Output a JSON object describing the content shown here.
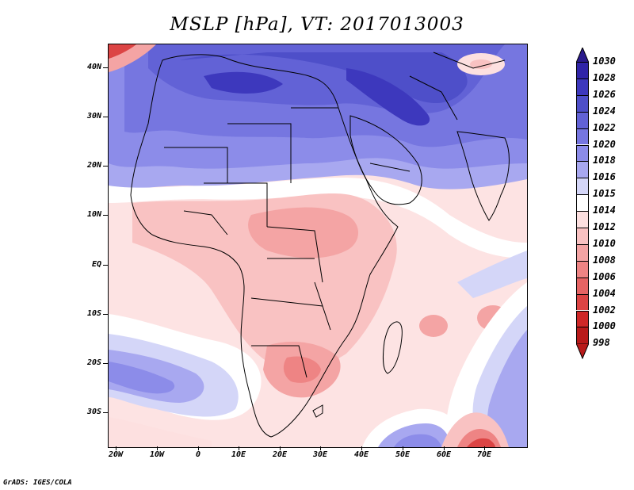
{
  "title": "MSLP [hPa], VT: 2017013003",
  "footer": "GrADS: IGES/COLA",
  "latitude_labels": [
    "40N",
    "30N",
    "20N",
    "10N",
    "EQ",
    "10S",
    "20S",
    "30S"
  ],
  "longitude_labels": [
    "20W",
    "10W",
    "0",
    "10E",
    "20E",
    "30E",
    "40E",
    "50E",
    "60E",
    "70E"
  ],
  "colorbar": {
    "levels": [
      "1030",
      "1028",
      "1026",
      "1024",
      "1022",
      "1020",
      "1018",
      "1016",
      "1015",
      "1014",
      "1012",
      "1010",
      "1008",
      "1006",
      "1004",
      "1002",
      "1000",
      "998"
    ],
    "colors": [
      "#2a1a8c",
      "#3024a8",
      "#3d38bd",
      "#4e4fc9",
      "#6262d6",
      "#7676e0",
      "#8c8ce9",
      "#a8a8f0",
      "#d4d6f8",
      "#ffffff",
      "#fde0e0",
      "#f9c2c2",
      "#f4a4a4",
      "#ee8484",
      "#e66464",
      "#dc4444",
      "#cf2828",
      "#b81a1a"
    ],
    "top_arrow_color": "#2a1a8c",
    "bottom_arrow_color": "#b81a1a"
  }
}
